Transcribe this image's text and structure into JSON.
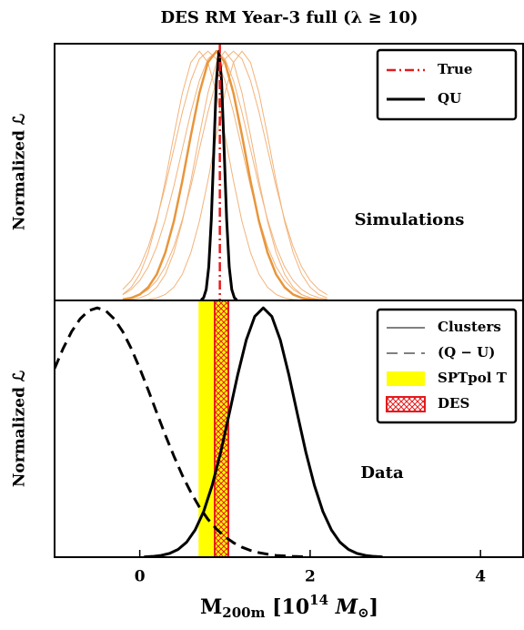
{
  "chart_data": [
    {
      "type": "line",
      "title": "DES RM Year-3 full (λ ≥ 10)",
      "ylabel": "Normalized ℒ",
      "annotation": "Simulations",
      "xlim": [
        -1,
        4.5
      ],
      "ylim": [
        0,
        1.03
      ],
      "vlines": [
        {
          "name": "True",
          "x": 0.94,
          "color": "#e41a1c"
        }
      ],
      "series": [
        {
          "color": "#f2b37a",
          "x": [
            -0.2,
            -0.1,
            0,
            0.1,
            0.2,
            0.3,
            0.4,
            0.5,
            0.6,
            0.7,
            0.8,
            0.9,
            1.0,
            1.1,
            1.2,
            1.3,
            1.4,
            1.5,
            1.6,
            1.7,
            1.8,
            1.9,
            2.0,
            2.1,
            2.2
          ],
          "values": [
            0.024,
            0.053,
            0.105,
            0.192,
            0.317,
            0.48,
            0.662,
            0.832,
            0.955,
            1,
            0.955,
            0.832,
            0.662,
            0.48,
            0.317,
            0.192,
            0.105,
            0.053,
            0.024,
            0.01,
            0.004,
            0.001,
            0,
            0,
            0
          ]
        },
        {
          "color": "#f2b37a",
          "x": [
            -0.2,
            -0.1,
            0,
            0.1,
            0.2,
            0.3,
            0.4,
            0.5,
            0.6,
            0.7,
            0.8,
            0.9,
            1.0,
            1.1,
            1.2,
            1.3,
            1.4,
            1.5,
            1.6,
            1.7,
            1.8,
            1.9,
            2.0,
            2.1,
            2.2
          ],
          "values": [
            0.044,
            0.08,
            0.135,
            0.216,
            0.325,
            0.458,
            0.607,
            0.755,
            0.882,
            0.969,
            1,
            0.969,
            0.882,
            0.755,
            0.607,
            0.458,
            0.325,
            0.216,
            0.135,
            0.08,
            0.044,
            0.023,
            0.011,
            0.005,
            0.002
          ]
        },
        {
          "color": "#f2b37a",
          "x": [
            -0.2,
            -0.1,
            0,
            0.1,
            0.2,
            0.3,
            0.4,
            0.5,
            0.6,
            0.7,
            0.8,
            0.9,
            1.0,
            1.1,
            1.2,
            1.3,
            1.4,
            1.5,
            1.6,
            1.7,
            1.8,
            1.9,
            2.0,
            2.1,
            2.2
          ],
          "values": [
            0.023,
            0.044,
            0.08,
            0.135,
            0.216,
            0.325,
            0.458,
            0.607,
            0.755,
            0.882,
            0.969,
            1,
            0.969,
            0.882,
            0.755,
            0.607,
            0.458,
            0.325,
            0.216,
            0.135,
            0.08,
            0.044,
            0.023,
            0.011,
            0.005
          ]
        },
        {
          "color": "#f2b37a",
          "x": [
            -0.2,
            -0.1,
            0,
            0.1,
            0.2,
            0.3,
            0.4,
            0.5,
            0.6,
            0.7,
            0.8,
            0.9,
            1.0,
            1.1,
            1.2,
            1.3,
            1.4,
            1.5,
            1.6,
            1.7,
            1.8,
            1.9,
            2.0,
            2.1,
            2.2
          ],
          "values": [
            0.001,
            0.004,
            0.01,
            0.024,
            0.053,
            0.105,
            0.192,
            0.317,
            0.48,
            0.662,
            0.832,
            0.955,
            1,
            0.955,
            0.832,
            0.662,
            0.48,
            0.317,
            0.192,
            0.105,
            0.053,
            0.024,
            0.01,
            0.004,
            0.001
          ]
        },
        {
          "color": "#f2b37a",
          "x": [
            -0.2,
            -0.1,
            0,
            0.1,
            0.2,
            0.3,
            0.4,
            0.5,
            0.6,
            0.7,
            0.8,
            0.9,
            1.0,
            1.1,
            1.2,
            1.3,
            1.4,
            1.5,
            1.6,
            1.7,
            1.8,
            1.9,
            2.0,
            2.1,
            2.2
          ],
          "values": [
            0.005,
            0.011,
            0.023,
            0.044,
            0.08,
            0.135,
            0.216,
            0.325,
            0.458,
            0.607,
            0.755,
            0.882,
            0.969,
            1,
            0.969,
            0.882,
            0.755,
            0.607,
            0.458,
            0.325,
            0.216,
            0.135,
            0.08,
            0.044,
            0.023
          ]
        },
        {
          "color": "#f2b37a",
          "x": [
            -0.2,
            -0.1,
            0,
            0.1,
            0.2,
            0.3,
            0.4,
            0.5,
            0.6,
            0.7,
            0.8,
            0.9,
            1.0,
            1.1,
            1.2,
            1.3,
            1.4,
            1.5,
            1.6,
            1.7,
            1.8,
            1.9,
            2.0,
            2.1,
            2.2
          ],
          "values": [
            0,
            0,
            0.001,
            0.004,
            0.01,
            0.024,
            0.053,
            0.105,
            0.192,
            0.317,
            0.48,
            0.662,
            0.832,
            0.955,
            1,
            0.955,
            0.832,
            0.662,
            0.48,
            0.317,
            0.192,
            0.105,
            0.053,
            0.024,
            0.01
          ]
        },
        {
          "color": "#e8963c",
          "width": 2.5,
          "x": [
            -0.2,
            -0.1,
            0,
            0.1,
            0.2,
            0.3,
            0.4,
            0.5,
            0.6,
            0.7,
            0.8,
            0.9,
            1.0,
            1.1,
            1.2,
            1.3,
            1.4,
            1.5,
            1.6,
            1.7,
            1.8,
            1.9,
            2.0,
            2.1,
            2.2
          ],
          "values": [
            0.004,
            0.01,
            0.024,
            0.053,
            0.105,
            0.192,
            0.317,
            0.48,
            0.662,
            0.832,
            0.955,
            1,
            0.955,
            0.832,
            0.662,
            0.48,
            0.317,
            0.192,
            0.105,
            0.053,
            0.024,
            0.01,
            0.004,
            0.001,
            0
          ]
        },
        {
          "name": "QU",
          "color": "#000000",
          "width": 3,
          "x": [
            0.72,
            0.75,
            0.78,
            0.81,
            0.84,
            0.87,
            0.9,
            0.93,
            0.96,
            0.99,
            1.02,
            1.05,
            1.08,
            1.11,
            1.14
          ],
          "values": [
            0.002,
            0.011,
            0.044,
            0.135,
            0.325,
            0.607,
            0.883,
            1,
            0.883,
            0.607,
            0.325,
            0.135,
            0.044,
            0.011,
            0.002
          ]
        }
      ]
    },
    {
      "type": "line",
      "ylabel": "Normalized ℒ",
      "annotation": "Data",
      "xlabel": [
        "M",
        "200m",
        " [10",
        "14",
        " M",
        "⊙",
        "]"
      ],
      "xlim": [
        -1,
        4.5
      ],
      "ylim": [
        0,
        1.03
      ],
      "xticks": [
        0,
        2,
        4
      ],
      "series": [
        {
          "name": "Clusters",
          "color": "#000000",
          "width": 3,
          "x": [
            0.05,
            0.15,
            0.25,
            0.35,
            0.45,
            0.55,
            0.65,
            0.75,
            0.85,
            0.95,
            1.05,
            1.15,
            1.25,
            1.35,
            1.45,
            1.55,
            1.65,
            1.75,
            1.85,
            1.95,
            2.05,
            2.15,
            2.25,
            2.35,
            2.45,
            2.55,
            2.65,
            2.75,
            2.85
          ],
          "values": [
            0.001,
            0.003,
            0.007,
            0.015,
            0.031,
            0.06,
            0.109,
            0.183,
            0.288,
            0.421,
            0.575,
            0.732,
            0.871,
            0.966,
            1,
            0.966,
            0.871,
            0.732,
            0.575,
            0.421,
            0.288,
            0.183,
            0.109,
            0.06,
            0.031,
            0.015,
            0.007,
            0.003,
            0.001
          ]
        },
        {
          "name": "(Q − U)",
          "color": "#000000",
          "width": 3,
          "style": "dashed",
          "x": [
            -1.0,
            -0.9,
            -0.8,
            -0.7,
            -0.6,
            -0.5,
            -0.4,
            -0.3,
            -0.2,
            -0.1,
            0,
            0.1,
            0.2,
            0.3,
            0.4,
            0.5,
            0.6,
            0.7,
            0.8,
            0.9,
            1.0,
            1.1,
            1.2,
            1.3,
            1.4,
            1.5,
            1.6,
            1.7,
            1.8,
            1.9,
            2.0
          ],
          "values": [
            0.757,
            0.837,
            0.905,
            0.956,
            0.989,
            1,
            0.989,
            0.956,
            0.905,
            0.837,
            0.757,
            0.67,
            0.579,
            0.49,
            0.406,
            0.328,
            0.26,
            0.201,
            0.152,
            0.113,
            0.082,
            0.058,
            0.04,
            0.027,
            0.018,
            0.012,
            0.007,
            0.005,
            0.003,
            0.002,
            0.001
          ]
        }
      ],
      "bands": [
        {
          "name": "SPTpol T",
          "lo": 0.69,
          "hi": 1.03,
          "color": "#ffff00"
        },
        {
          "name": "DES",
          "lo": 0.88,
          "hi": 1.04,
          "color": "#e41a1c",
          "hatch": true
        }
      ]
    }
  ]
}
